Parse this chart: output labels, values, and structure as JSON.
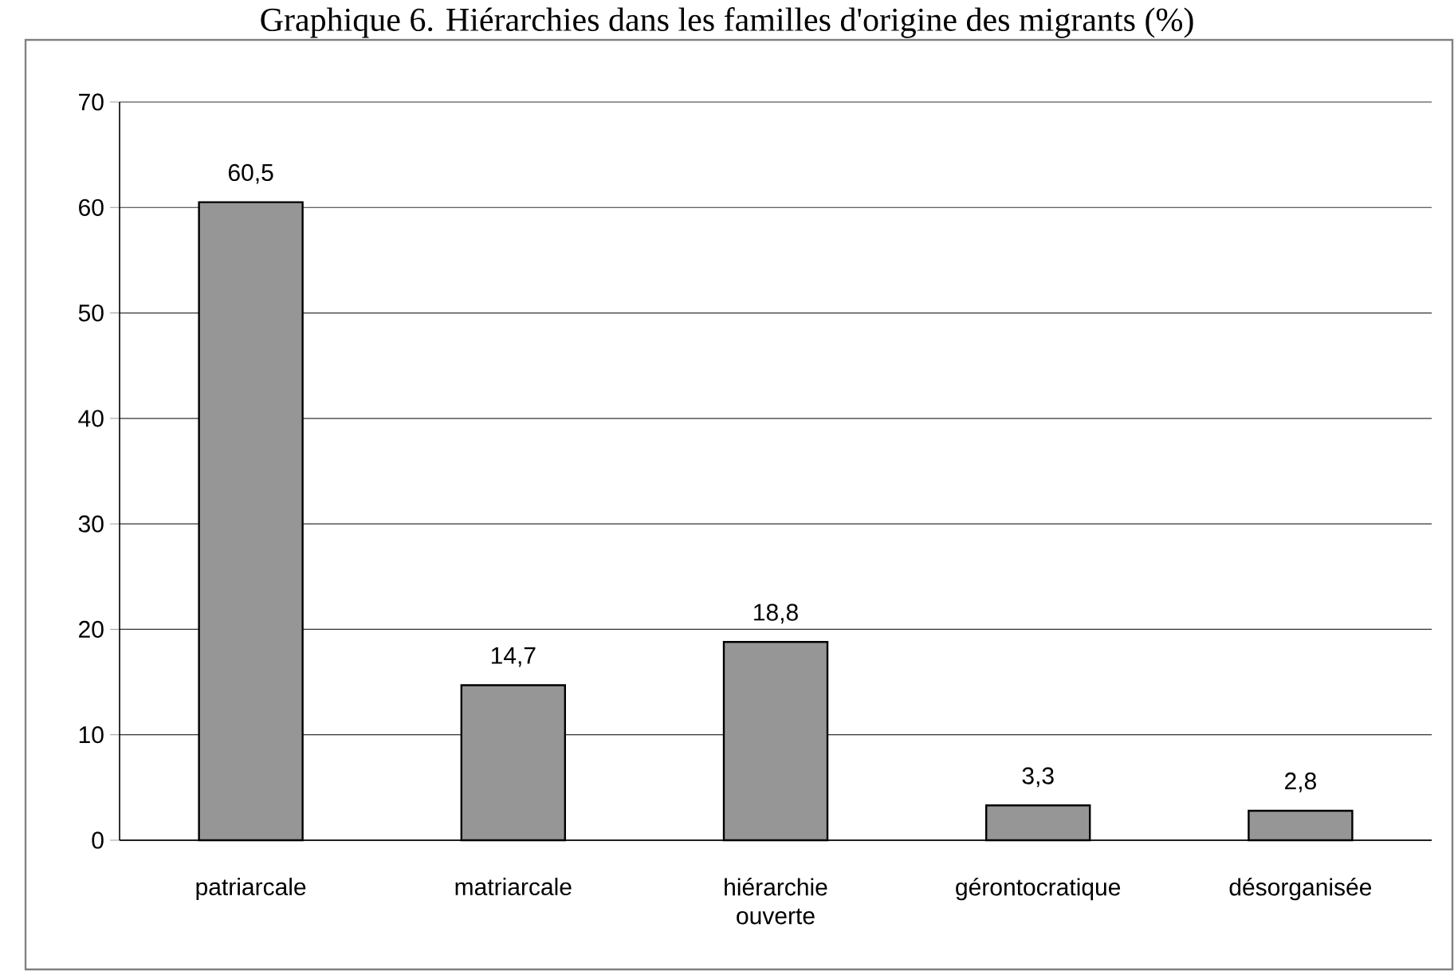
{
  "chart_data": {
    "type": "bar",
    "title": "Graphique 6. Hiérarchies dans les familles d'origine des migrants (%)",
    "categories": [
      "patriarcale",
      "matriarcale",
      "hiérarchie ouverte",
      "gérontocratique",
      "désorganisée"
    ],
    "values": [
      60.5,
      14.7,
      18.8,
      3.3,
      2.8
    ],
    "value_labels": [
      "60,5",
      "14,7",
      "18,8",
      "3,3",
      "2,8"
    ],
    "color": "#969696",
    "ylim": [
      0,
      70
    ],
    "yticks": [
      0,
      10,
      20,
      30,
      40,
      50,
      60,
      70
    ],
    "grid": "y"
  }
}
